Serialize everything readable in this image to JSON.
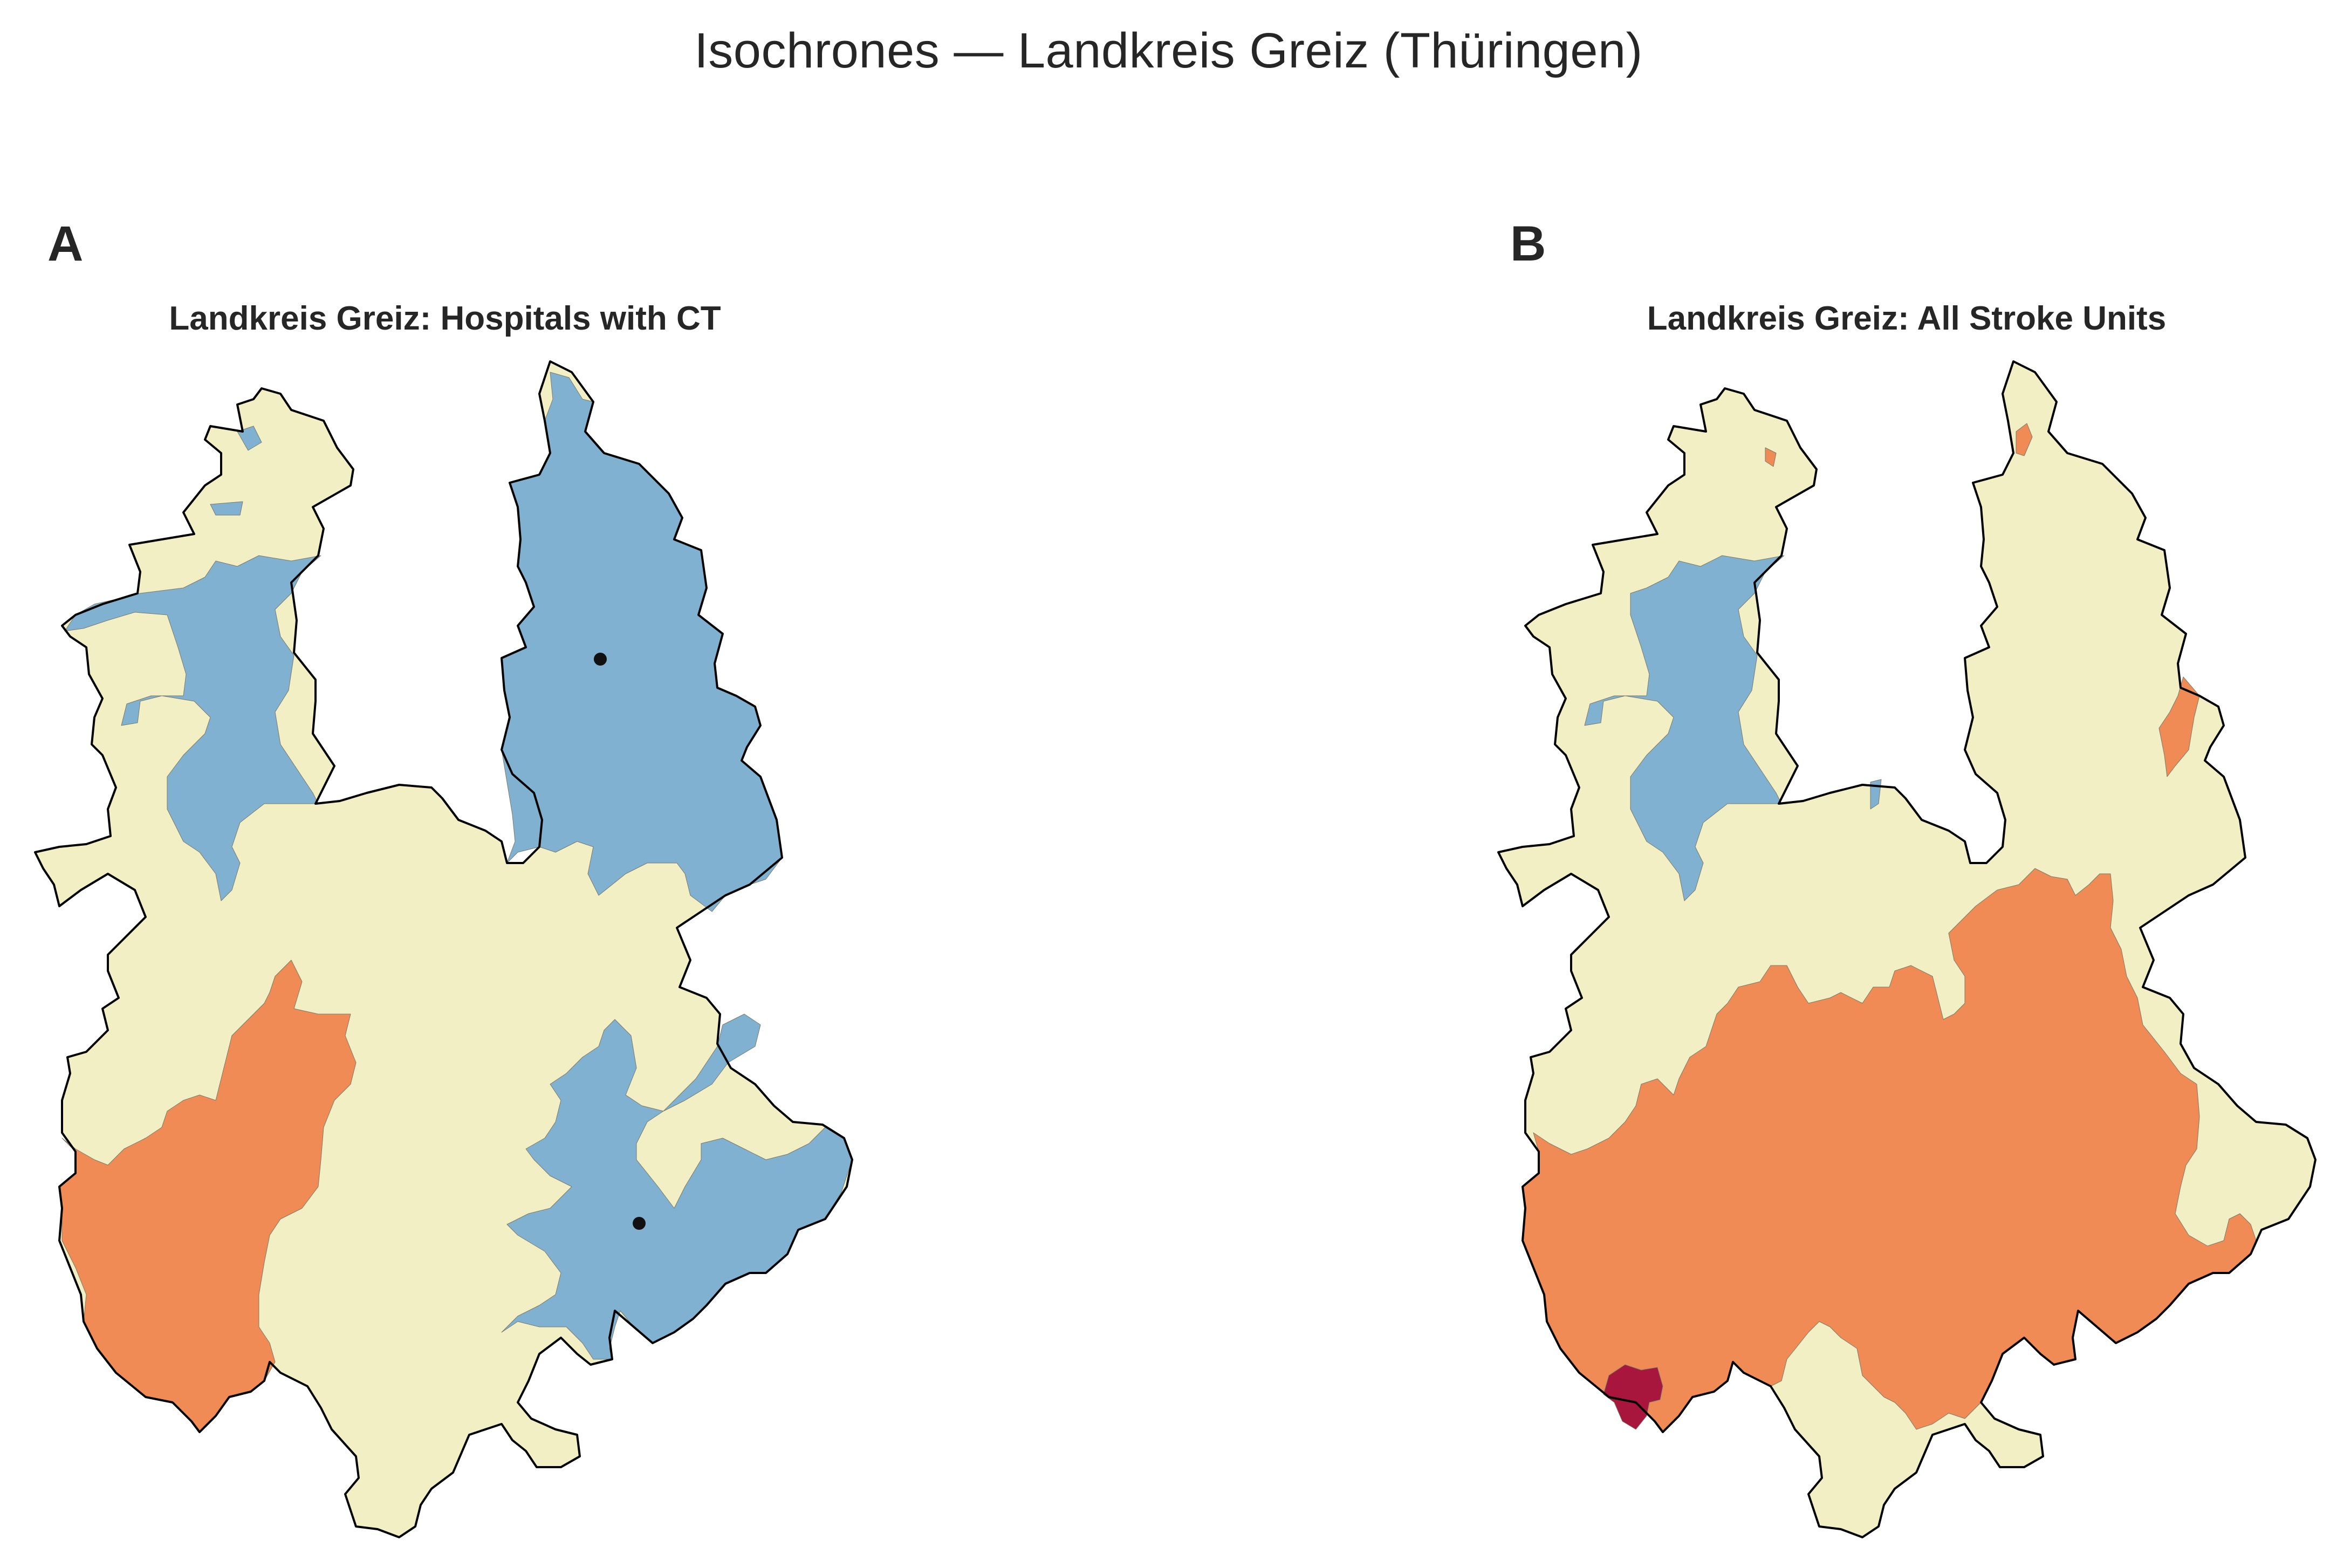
{
  "figure": {
    "title": "Isochrones — Landkreis Greiz (Thüringen)"
  },
  "colors": {
    "band_fast": "#80b1d0",
    "band_mid": "#f3efc5",
    "band_slow": "#f18b55",
    "band_slowest": "#a8153d",
    "boundary": "#000000",
    "facility_marker": "#111111"
  },
  "panels": [
    {
      "letter": "A",
      "title": "Landkreis Greiz: Hospitals with CT",
      "facility_markers": 2
    },
    {
      "letter": "B",
      "title": "Landkreis Greiz: All Stroke Units",
      "facility_markers": 0
    }
  ]
}
